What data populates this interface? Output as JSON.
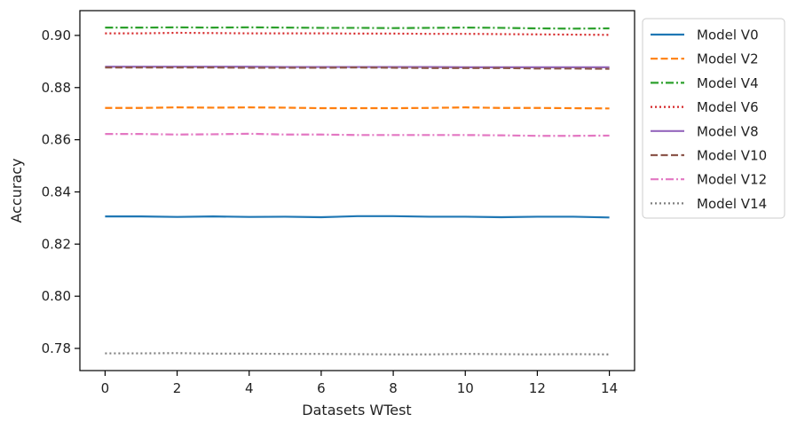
{
  "chart_data": {
    "type": "line",
    "title": "",
    "xlabel": "Datasets WTest",
    "ylabel": "Accuracy",
    "xlim": [
      -0.7,
      14.7
    ],
    "ylim": [
      0.7715,
      0.9095
    ],
    "x_ticks": [
      0,
      2,
      4,
      6,
      8,
      10,
      12,
      14
    ],
    "x_tick_labels": [
      "0",
      "2",
      "4",
      "6",
      "8",
      "10",
      "12",
      "14"
    ],
    "y_ticks": [
      0.78,
      0.8,
      0.82,
      0.84,
      0.86,
      0.88,
      0.9
    ],
    "y_tick_labels": [
      "0.78",
      "0.80",
      "0.82",
      "0.84",
      "0.86",
      "0.88",
      "0.90"
    ],
    "grid": false,
    "legend_position": "outside-right",
    "x": [
      0,
      1,
      2,
      3,
      4,
      5,
      6,
      7,
      8,
      9,
      10,
      11,
      12,
      13,
      14
    ],
    "series": [
      {
        "name": "Model V0",
        "color": "#1f77b4",
        "dash": "solid",
        "values": [
          0.8306,
          0.8306,
          0.8304,
          0.8306,
          0.8304,
          0.8305,
          0.8303,
          0.8307,
          0.8307,
          0.8305,
          0.8305,
          0.8303,
          0.8305,
          0.8305,
          0.8302
        ]
      },
      {
        "name": "Model V2",
        "color": "#ff7f0e",
        "dash": "dashed",
        "values": [
          0.8722,
          0.8722,
          0.8724,
          0.8723,
          0.8724,
          0.8723,
          0.8721,
          0.8721,
          0.8721,
          0.8722,
          0.8724,
          0.8722,
          0.8722,
          0.8721,
          0.872
        ]
      },
      {
        "name": "Model V4",
        "color": "#2ca02c",
        "dash": "dashdot",
        "values": [
          0.903,
          0.903,
          0.9031,
          0.903,
          0.9031,
          0.903,
          0.9029,
          0.9029,
          0.9028,
          0.9029,
          0.903,
          0.9029,
          0.9027,
          0.9026,
          0.9027
        ]
      },
      {
        "name": "Model V6",
        "color": "#d62728",
        "dash": "dotted",
        "values": [
          0.9008,
          0.9008,
          0.901,
          0.9009,
          0.9008,
          0.9008,
          0.9008,
          0.9007,
          0.9007,
          0.9006,
          0.9006,
          0.9005,
          0.9004,
          0.9003,
          0.9002
        ]
      },
      {
        "name": "Model V8",
        "color": "#9467bd",
        "dash": "solid",
        "values": [
          0.888,
          0.888,
          0.888,
          0.888,
          0.888,
          0.8879,
          0.8879,
          0.8879,
          0.8879,
          0.8879,
          0.8878,
          0.8878,
          0.8878,
          0.8878,
          0.8878
        ]
      },
      {
        "name": "Model V10",
        "color": "#8c564b",
        "dash": "dashed",
        "values": [
          0.8877,
          0.8877,
          0.8877,
          0.8877,
          0.8876,
          0.8876,
          0.8876,
          0.8877,
          0.8876,
          0.8875,
          0.8875,
          0.8875,
          0.8873,
          0.8873,
          0.8872
        ]
      },
      {
        "name": "Model V12",
        "color": "#e377c2",
        "dash": "dashdot",
        "values": [
          0.8622,
          0.8622,
          0.862,
          0.8621,
          0.8623,
          0.862,
          0.862,
          0.8618,
          0.8618,
          0.8618,
          0.8618,
          0.8617,
          0.8615,
          0.8615,
          0.8616
        ]
      },
      {
        "name": "Model V14",
        "color": "#7f7f7f",
        "dash": "dotted",
        "values": [
          0.7781,
          0.7781,
          0.7782,
          0.778,
          0.778,
          0.7779,
          0.7779,
          0.7778,
          0.7777,
          0.7777,
          0.7779,
          0.7778,
          0.7777,
          0.7778,
          0.7777
        ]
      }
    ]
  }
}
